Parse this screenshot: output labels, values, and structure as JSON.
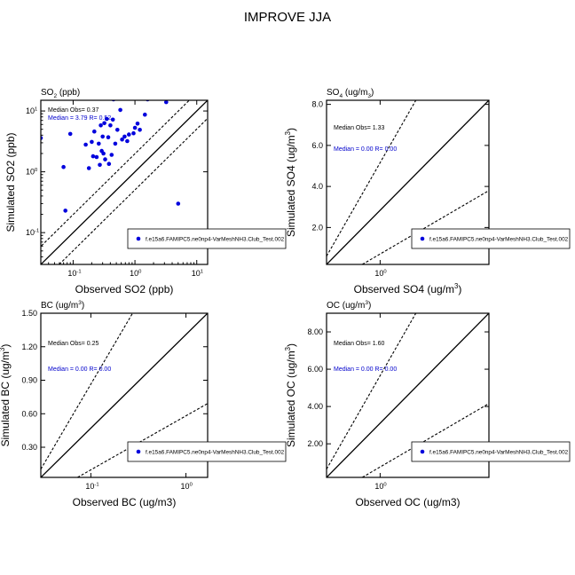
{
  "page_title": "IMPROVE JJA",
  "chart_data": [
    {
      "id": "so2",
      "type": "scatter",
      "title_parts": [
        "SO",
        "2",
        " (ppb)"
      ],
      "xlabel": "Observed SO2 (ppb)",
      "ylabel": "Simulated SO2 (ppb)",
      "scale": "log",
      "xlim": [
        0.03,
        15
      ],
      "ylim": [
        0.03,
        15
      ],
      "ticks": [
        {
          "v": 0.1,
          "base": "10",
          "exp": "-1"
        },
        {
          "v": 1,
          "base": "10",
          "exp": "0"
        },
        {
          "v": 10,
          "base": "10",
          "exp": "1"
        }
      ],
      "stats": {
        "median_obs": "Median Obs= 0.37",
        "median_sim": "Median = 3.79 R= 0.52"
      },
      "legend_label": "f.e15a6.FAMIPC5.ne0np4-VarMeshNH3.Club_Test.002",
      "marker_color": "#0000dd",
      "points": [
        {
          "x": 0.03,
          "y": 3.6
        },
        {
          "x": 0.07,
          "y": 1.2
        },
        {
          "x": 0.075,
          "y": 0.23
        },
        {
          "x": 0.09,
          "y": 4.2
        },
        {
          "x": 0.16,
          "y": 2.8
        },
        {
          "x": 0.18,
          "y": 1.15
        },
        {
          "x": 0.2,
          "y": 3.1
        },
        {
          "x": 0.21,
          "y": 1.8
        },
        {
          "x": 0.22,
          "y": 4.6
        },
        {
          "x": 0.24,
          "y": 1.75
        },
        {
          "x": 0.26,
          "y": 2.9
        },
        {
          "x": 0.27,
          "y": 1.3
        },
        {
          "x": 0.28,
          "y": 5.8
        },
        {
          "x": 0.29,
          "y": 2.2
        },
        {
          "x": 0.3,
          "y": 3.8
        },
        {
          "x": 0.31,
          "y": 2.0
        },
        {
          "x": 0.32,
          "y": 6.3
        },
        {
          "x": 0.33,
          "y": 1.6
        },
        {
          "x": 0.35,
          "y": 7.4
        },
        {
          "x": 0.37,
          "y": 3.7
        },
        {
          "x": 0.38,
          "y": 1.35
        },
        {
          "x": 0.4,
          "y": 5.8
        },
        {
          "x": 0.42,
          "y": 1.9
        },
        {
          "x": 0.44,
          "y": 7.2
        },
        {
          "x": 0.45,
          "y": 15.5
        },
        {
          "x": 0.48,
          "y": 2.9
        },
        {
          "x": 0.52,
          "y": 4.9
        },
        {
          "x": 0.58,
          "y": 10.4
        },
        {
          "x": 0.62,
          "y": 3.4
        },
        {
          "x": 0.68,
          "y": 3.8
        },
        {
          "x": 0.75,
          "y": 3.2
        },
        {
          "x": 0.8,
          "y": 4.1
        },
        {
          "x": 0.95,
          "y": 4.3
        },
        {
          "x": 1.0,
          "y": 5.3
        },
        {
          "x": 1.1,
          "y": 6.2
        },
        {
          "x": 1.2,
          "y": 4.9
        },
        {
          "x": 1.45,
          "y": 8.7
        },
        {
          "x": 1.6,
          "y": 15.5
        },
        {
          "x": 3.2,
          "y": 14.0
        },
        {
          "x": 5.0,
          "y": 0.3
        },
        {
          "x": 11.5,
          "y": 16.5
        }
      ]
    },
    {
      "id": "so4",
      "type": "scatter",
      "title_parts": [
        "SO",
        "4",
        " (ug/m",
        "3",
        ")"
      ],
      "xlabel_parts": [
        "Observed SO4 (ug/m",
        "3",
        ")"
      ],
      "ylabel_parts": [
        "Simulated SO4 (ug/m",
        "3",
        ")"
      ],
      "scale": "linear",
      "xlim": [
        0.2,
        8.2
      ],
      "ylim": [
        0.2,
        8.2
      ],
      "xticks": [
        {
          "v": 1,
          "base": "10",
          "exp": "0"
        }
      ],
      "yticks": [
        {
          "v": 2.0,
          "label": "2.0"
        },
        {
          "v": 4.0,
          "label": "4.0"
        },
        {
          "v": 6.0,
          "label": "6.0"
        },
        {
          "v": 8.0,
          "label": "8.0"
        }
      ],
      "stats": {
        "median_obs": "Median Obs= 1.33",
        "median_sim": "Median = 0.00 R= 0.00"
      },
      "legend_label": "f.e15a6.FAMIPC5.ne0np4-VarMeshNH3.Club_Test.002",
      "marker_color": "#0000dd",
      "points": []
    },
    {
      "id": "bc",
      "type": "scatter",
      "title_parts": [
        "BC (ug/m",
        "3",
        ")"
      ],
      "xlabel": "Observed BC (ug/m3)",
      "ylabel_parts": [
        "Simulated BC (ug/m",
        "3",
        ")"
      ],
      "scale": "linear",
      "xlim": [
        0.03,
        1.5
      ],
      "ylim": [
        0.03,
        1.5
      ],
      "xticks": [
        {
          "v": 0.1,
          "base": "10",
          "exp": "-1"
        },
        {
          "v": 1,
          "base": "10",
          "exp": "0"
        }
      ],
      "yticks": [
        {
          "v": 0.3,
          "label": "0.30"
        },
        {
          "v": 0.6,
          "label": "0.60"
        },
        {
          "v": 0.9,
          "label": "0.90"
        },
        {
          "v": 1.2,
          "label": "1.20"
        },
        {
          "v": 1.5,
          "label": "1.50"
        }
      ],
      "stats": {
        "median_obs": "Median Obs= 0.25",
        "median_sim": "Median = 0.00 R= 0.00"
      },
      "legend_label": "f.e15a6.FAMIPC5.ne0np4-VarMeshNH3.Club_Test.002",
      "marker_color": "#0000dd",
      "points": []
    },
    {
      "id": "oc",
      "type": "scatter",
      "title_parts": [
        "OC (ug/m",
        "3",
        ")"
      ],
      "xlabel": "Observed OC (ug/m3)",
      "ylabel_parts": [
        "Simulated OC (ug/m",
        "3",
        ")"
      ],
      "scale": "linear",
      "xlim": [
        0.2,
        9.0
      ],
      "ylim": [
        0.2,
        9.0
      ],
      "xticks": [
        {
          "v": 1,
          "base": "10",
          "exp": "0"
        }
      ],
      "yticks": [
        {
          "v": 2.0,
          "label": "2.00"
        },
        {
          "v": 4.0,
          "label": "4.00"
        },
        {
          "v": 6.0,
          "label": "6.00"
        },
        {
          "v": 8.0,
          "label": "8.00"
        }
      ],
      "stats": {
        "median_obs": "Median Obs= 1.60",
        "median_sim": "Median = 0.00 R= 0.00"
      },
      "legend_label": "f.e15a6.FAMIPC5.ne0np4-VarMeshNH3.Club_Test.002",
      "marker_color": "#0000dd",
      "points": []
    }
  ]
}
